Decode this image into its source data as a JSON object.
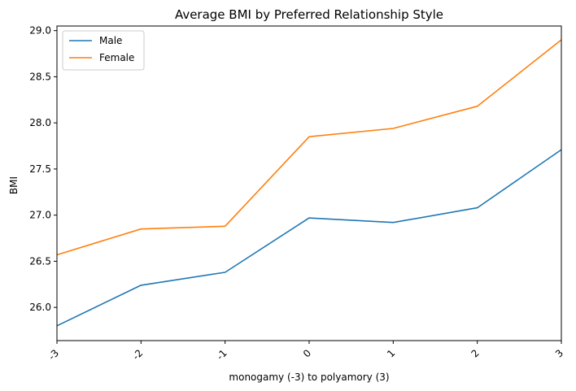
{
  "chart_data": {
    "type": "line",
    "title": "Average BMI by Preferred Relationship Style",
    "xlabel": "monogamy (-3) to polyamory (3)",
    "ylabel": "BMI",
    "x": [
      -3,
      -2,
      -1,
      0,
      1,
      2,
      3
    ],
    "x_tick_labels": [
      "-3",
      "-2",
      "-1",
      "0",
      "1",
      "2",
      "3"
    ],
    "xlim": [
      -3,
      3
    ],
    "ylim": [
      25.64,
      29.05
    ],
    "y_ticks": [
      26.0,
      26.5,
      27.0,
      27.5,
      28.0,
      28.5,
      29.0
    ],
    "y_tick_labels": [
      "26.0",
      "26.5",
      "27.0",
      "27.5",
      "28.0",
      "28.5",
      "29.0"
    ],
    "x_tick_rotation": 45,
    "grid": false,
    "legend_position": "top-left",
    "series": [
      {
        "name": "Male",
        "color": "#1f77b4",
        "values": [
          25.8,
          26.24,
          26.38,
          26.97,
          26.92,
          27.08,
          27.71
        ]
      },
      {
        "name": "Female",
        "color": "#ff7f0e",
        "values": [
          26.57,
          26.85,
          26.88,
          27.85,
          27.94,
          28.18,
          28.9
        ]
      }
    ]
  }
}
